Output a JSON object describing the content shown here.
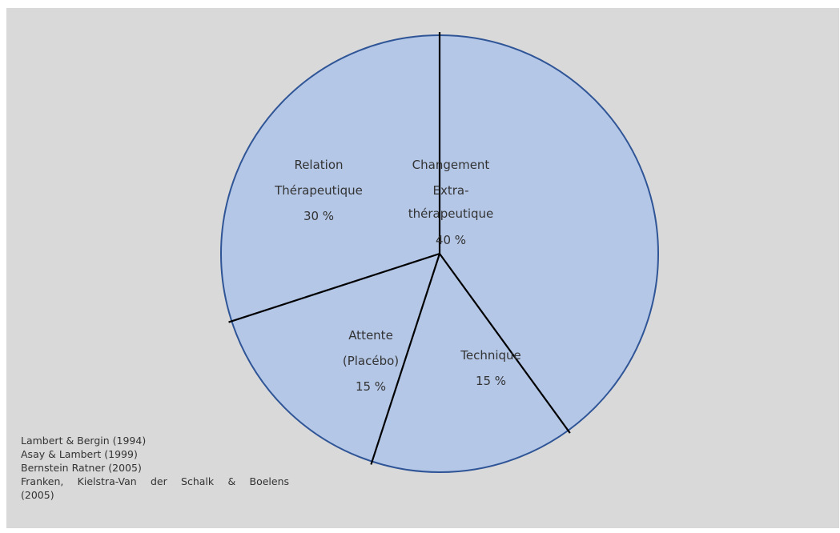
{
  "chart_data": {
    "type": "pie",
    "slices": [
      {
        "lines": [
          "Changement",
          "Extra-",
          "thérapeutique",
          "40 %"
        ],
        "value": 40
      },
      {
        "lines": [
          "Technique",
          "15 %"
        ],
        "value": 15
      },
      {
        "lines": [
          "Attente",
          "(Placébo)",
          "15 %"
        ],
        "value": 15
      },
      {
        "lines": [
          "Relation",
          "Thérapeutique",
          "30 %"
        ],
        "value": 30
      }
    ],
    "fill_color": "#b4c7e7",
    "border_color": "#2f5597",
    "divider_color": "#000000"
  },
  "references": [
    "Lambert & Bergin (1994)",
    "Asay & Lambert (1999)",
    "Bernstein Ratner (2005)",
    "Franken, Kielstra-Van der Schalk & Boelens",
    "(2005)"
  ],
  "colors": {
    "panel_background": "#d9d9d9",
    "text": "#333333"
  }
}
